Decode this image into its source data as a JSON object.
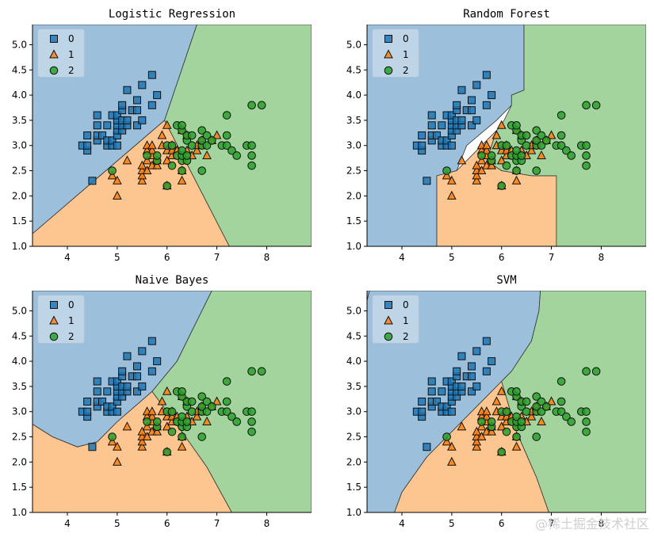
{
  "chart_data": [
    {
      "type": "scatter",
      "title": "Logistic Regression",
      "xlim": [
        3.3,
        8.9
      ],
      "ylim": [
        1.0,
        5.4
      ],
      "xticks": [
        4,
        5,
        6,
        7,
        8
      ],
      "yticks": [
        1.0,
        1.5,
        2.0,
        2.5,
        3.0,
        3.5,
        4.0,
        4.5,
        5.0
      ],
      "legend": [
        "0",
        "1",
        "2"
      ],
      "legend_position": "top-left",
      "decision_regions": [
        {
          "class": "0",
          "polygon": [
            [
              3.3,
              1.25
            ],
            [
              5.95,
              3.5
            ],
            [
              6.6,
              5.4
            ],
            [
              3.3,
              5.4
            ]
          ]
        },
        {
          "class": "1",
          "polygon": [
            [
              3.3,
              1.0
            ],
            [
              3.3,
              1.25
            ],
            [
              5.95,
              3.5
            ],
            [
              7.25,
              1.0
            ]
          ]
        },
        {
          "class": "2",
          "polygon": [
            [
              7.25,
              1.0
            ],
            [
              5.95,
              3.5
            ],
            [
              6.6,
              5.4
            ],
            [
              8.9,
              5.4
            ],
            [
              8.9,
              1.0
            ]
          ]
        }
      ]
    },
    {
      "type": "scatter",
      "title": "Random Forest",
      "xlim": [
        3.3,
        8.9
      ],
      "ylim": [
        1.0,
        5.4
      ],
      "xticks": [
        4,
        5,
        6,
        7,
        8
      ],
      "yticks": [
        1.0,
        1.5,
        2.0,
        2.5,
        3.0,
        3.5,
        4.0,
        4.5,
        5.0
      ],
      "legend": [
        "0",
        "1",
        "2"
      ],
      "legend_position": "top-left",
      "decision_regions": [
        {
          "class": "0",
          "polygon": [
            [
              3.3,
              1.0
            ],
            [
              4.7,
              1.0
            ],
            [
              4.7,
              2.4
            ],
            [
              5.1,
              2.5
            ],
            [
              5.3,
              3.0
            ],
            [
              5.9,
              3.5
            ],
            [
              6.2,
              3.8
            ],
            [
              6.2,
              4.0
            ],
            [
              6.45,
              4.1
            ],
            [
              6.45,
              5.4
            ],
            [
              3.3,
              5.4
            ]
          ]
        },
        {
          "class": "1",
          "polygon": [
            [
              4.7,
              1.0
            ],
            [
              7.1,
              1.0
            ],
            [
              7.1,
              2.4
            ],
            [
              6.6,
              2.4
            ],
            [
              6.0,
              2.5
            ],
            [
              5.7,
              2.7
            ],
            [
              5.9,
              3.3
            ],
            [
              6.0,
              3.4
            ],
            [
              5.6,
              3.0
            ],
            [
              5.1,
              2.5
            ],
            [
              4.7,
              2.4
            ]
          ]
        },
        {
          "class": "2",
          "polygon": [
            [
              7.1,
              1.0
            ],
            [
              8.9,
              1.0
            ],
            [
              8.9,
              5.4
            ],
            [
              6.45,
              5.4
            ],
            [
              6.45,
              4.1
            ],
            [
              6.2,
              4.0
            ],
            [
              6.2,
              3.8
            ],
            [
              6.0,
              3.4
            ],
            [
              5.9,
              3.3
            ],
            [
              5.7,
              2.7
            ],
            [
              6.0,
              2.5
            ],
            [
              6.6,
              2.4
            ],
            [
              7.1,
              2.4
            ]
          ]
        }
      ]
    },
    {
      "type": "scatter",
      "title": "Naive Bayes",
      "xlim": [
        3.3,
        8.9
      ],
      "ylim": [
        1.0,
        5.4
      ],
      "xticks": [
        4,
        5,
        6,
        7,
        8
      ],
      "yticks": [
        1.0,
        1.5,
        2.0,
        2.5,
        3.0,
        3.5,
        4.0,
        4.5,
        5.0
      ],
      "legend": [
        "0",
        "1",
        "2"
      ],
      "legend_position": "top-left",
      "decision_regions": [
        {
          "class": "0",
          "polygon": [
            [
              3.3,
              2.75
            ],
            [
              3.7,
              2.5
            ],
            [
              4.2,
              2.3
            ],
            [
              4.6,
              2.4
            ],
            [
              5.0,
              2.8
            ],
            [
              5.7,
              3.4
            ],
            [
              6.2,
              4.0
            ],
            [
              6.5,
              4.6
            ],
            [
              6.9,
              5.4
            ],
            [
              3.3,
              5.4
            ]
          ]
        },
        {
          "class": "1",
          "polygon": [
            [
              3.3,
              1.0
            ],
            [
              3.3,
              2.75
            ],
            [
              3.7,
              2.5
            ],
            [
              4.2,
              2.3
            ],
            [
              4.6,
              2.4
            ],
            [
              5.0,
              2.8
            ],
            [
              5.7,
              3.4
            ],
            [
              6.3,
              2.6
            ],
            [
              6.8,
              1.9
            ],
            [
              7.3,
              1.0
            ]
          ]
        },
        {
          "class": "2",
          "polygon": [
            [
              7.3,
              1.0
            ],
            [
              6.8,
              1.9
            ],
            [
              6.3,
              2.6
            ],
            [
              5.7,
              3.4
            ],
            [
              6.2,
              4.0
            ],
            [
              6.5,
              4.6
            ],
            [
              6.9,
              5.4
            ],
            [
              8.9,
              5.4
            ],
            [
              8.9,
              1.0
            ]
          ]
        }
      ]
    },
    {
      "type": "scatter",
      "title": "SVM",
      "xlim": [
        3.3,
        8.9
      ],
      "ylim": [
        1.0,
        5.4
      ],
      "xticks": [
        4,
        5,
        6,
        7,
        8
      ],
      "yticks": [
        1.0,
        1.5,
        2.0,
        2.5,
        3.0,
        3.5,
        4.0,
        4.5,
        5.0
      ],
      "legend": [
        "0",
        "1",
        "2"
      ],
      "legend_position": "top-left",
      "decision_regions": [
        {
          "class": "0",
          "polygon": [
            [
              3.3,
              5.2
            ],
            [
              3.3,
              5.4
            ],
            [
              3.35,
              5.4
            ]
          ]
        },
        {
          "class": "0",
          "polygon": [
            [
              3.85,
              1.0
            ],
            [
              4.0,
              1.4
            ],
            [
              4.5,
              2.1
            ],
            [
              5.2,
              2.8
            ],
            [
              5.7,
              3.3
            ],
            [
              6.2,
              3.8
            ],
            [
              6.6,
              4.4
            ],
            [
              6.75,
              5.0
            ],
            [
              6.78,
              5.4
            ],
            [
              3.35,
              5.4
            ],
            [
              3.3,
              5.2
            ],
            [
              3.3,
              1.0
            ]
          ]
        },
        {
          "class": "1",
          "polygon": [
            [
              3.85,
              1.0
            ],
            [
              4.0,
              1.4
            ],
            [
              4.5,
              2.1
            ],
            [
              5.2,
              2.8
            ],
            [
              5.7,
              3.3
            ],
            [
              6.0,
              3.6
            ],
            [
              6.3,
              2.6
            ],
            [
              6.7,
              1.7
            ],
            [
              6.95,
              1.0
            ]
          ]
        },
        {
          "class": "2",
          "polygon": [
            [
              6.95,
              1.0
            ],
            [
              6.7,
              1.7
            ],
            [
              6.3,
              2.6
            ],
            [
              6.0,
              3.6
            ],
            [
              6.2,
              3.8
            ],
            [
              6.6,
              4.4
            ],
            [
              6.75,
              5.0
            ],
            [
              6.78,
              5.4
            ],
            [
              8.9,
              5.4
            ],
            [
              8.9,
              1.0
            ]
          ]
        }
      ]
    }
  ],
  "points": {
    "0": [
      [
        4.3,
        3.0
      ],
      [
        4.4,
        2.9
      ],
      [
        4.4,
        3.0
      ],
      [
        4.4,
        3.2
      ],
      [
        4.5,
        2.3
      ],
      [
        4.6,
        3.1
      ],
      [
        4.6,
        3.2
      ],
      [
        4.6,
        3.4
      ],
      [
        4.6,
        3.6
      ],
      [
        4.7,
        3.2
      ],
      [
        4.8,
        3.0
      ],
      [
        4.8,
        3.1
      ],
      [
        4.8,
        3.4
      ],
      [
        4.9,
        3.0
      ],
      [
        4.9,
        3.1
      ],
      [
        4.9,
        3.6
      ],
      [
        5.0,
        3.0
      ],
      [
        5.0,
        3.2
      ],
      [
        5.0,
        3.3
      ],
      [
        5.0,
        3.4
      ],
      [
        5.0,
        3.5
      ],
      [
        5.0,
        3.6
      ],
      [
        5.1,
        3.3
      ],
      [
        5.1,
        3.4
      ],
      [
        5.1,
        3.5
      ],
      [
        5.1,
        3.7
      ],
      [
        5.1,
        3.8
      ],
      [
        5.2,
        3.4
      ],
      [
        5.2,
        3.5
      ],
      [
        5.2,
        4.1
      ],
      [
        5.3,
        3.7
      ],
      [
        5.4,
        3.4
      ],
      [
        5.4,
        3.7
      ],
      [
        5.4,
        3.9
      ],
      [
        5.5,
        3.5
      ],
      [
        5.5,
        4.2
      ],
      [
        5.7,
        3.8
      ],
      [
        5.7,
        4.4
      ],
      [
        5.8,
        4.0
      ]
    ],
    "1": [
      [
        4.9,
        2.4
      ],
      [
        5.0,
        2.0
      ],
      [
        5.0,
        2.3
      ],
      [
        5.2,
        2.7
      ],
      [
        5.5,
        2.3
      ],
      [
        5.5,
        2.4
      ],
      [
        5.5,
        2.5
      ],
      [
        5.5,
        2.6
      ],
      [
        5.6,
        2.5
      ],
      [
        5.6,
        2.7
      ],
      [
        5.6,
        2.9
      ],
      [
        5.6,
        3.0
      ],
      [
        5.7,
        2.6
      ],
      [
        5.7,
        2.8
      ],
      [
        5.7,
        2.9
      ],
      [
        5.7,
        3.0
      ],
      [
        5.8,
        2.6
      ],
      [
        5.8,
        2.7
      ],
      [
        5.9,
        3.0
      ],
      [
        5.9,
        3.2
      ],
      [
        6.0,
        2.2
      ],
      [
        6.0,
        2.7
      ],
      [
        6.0,
        2.9
      ],
      [
        6.0,
        3.4
      ],
      [
        6.1,
        2.8
      ],
      [
        6.1,
        2.9
      ],
      [
        6.1,
        3.0
      ],
      [
        6.2,
        2.9
      ],
      [
        6.3,
        2.3
      ],
      [
        6.3,
        2.5
      ],
      [
        6.3,
        3.3
      ],
      [
        6.4,
        2.9
      ],
      [
        6.4,
        3.2
      ],
      [
        6.5,
        2.8
      ],
      [
        6.6,
        2.9
      ],
      [
        6.6,
        3.0
      ],
      [
        6.7,
        3.0
      ],
      [
        6.7,
        3.1
      ],
      [
        6.8,
        2.8
      ],
      [
        6.9,
        3.1
      ],
      [
        7.0,
        3.2
      ]
    ],
    "2": [
      [
        4.9,
        2.5
      ],
      [
        5.6,
        2.8
      ],
      [
        5.8,
        2.7
      ],
      [
        5.8,
        2.8
      ],
      [
        6.0,
        2.2
      ],
      [
        6.0,
        3.0
      ],
      [
        6.1,
        2.6
      ],
      [
        6.1,
        3.0
      ],
      [
        6.2,
        2.8
      ],
      [
        6.2,
        3.4
      ],
      [
        6.3,
        2.5
      ],
      [
        6.3,
        2.7
      ],
      [
        6.3,
        2.8
      ],
      [
        6.3,
        2.9
      ],
      [
        6.3,
        3.3
      ],
      [
        6.3,
        3.4
      ],
      [
        6.4,
        2.7
      ],
      [
        6.4,
        2.8
      ],
      [
        6.4,
        3.1
      ],
      [
        6.4,
        3.2
      ],
      [
        6.5,
        3.0
      ],
      [
        6.5,
        3.2
      ],
      [
        6.7,
        2.5
      ],
      [
        6.7,
        3.0
      ],
      [
        6.7,
        3.1
      ],
      [
        6.7,
        3.3
      ],
      [
        6.8,
        3.0
      ],
      [
        6.8,
        3.2
      ],
      [
        6.9,
        3.1
      ],
      [
        7.1,
        3.0
      ],
      [
        7.2,
        3.0
      ],
      [
        7.2,
        3.2
      ],
      [
        7.2,
        3.6
      ],
      [
        7.3,
        2.9
      ],
      [
        7.4,
        2.8
      ],
      [
        7.6,
        3.0
      ],
      [
        7.7,
        2.6
      ],
      [
        7.7,
        2.8
      ],
      [
        7.7,
        3.0
      ],
      [
        7.7,
        3.8
      ],
      [
        7.9,
        3.8
      ]
    ]
  },
  "colors": {
    "region": {
      "0": "#9cbfdc",
      "1": "#fdc590",
      "2": "#a3d49d"
    },
    "marker": {
      "0": "#1f77b4",
      "1": "#ff7f0e",
      "2": "#2ca02c"
    },
    "markers": {
      "0": "square",
      "1": "triangle",
      "2": "circle"
    }
  },
  "watermark": "@稀土掘金技术社区"
}
